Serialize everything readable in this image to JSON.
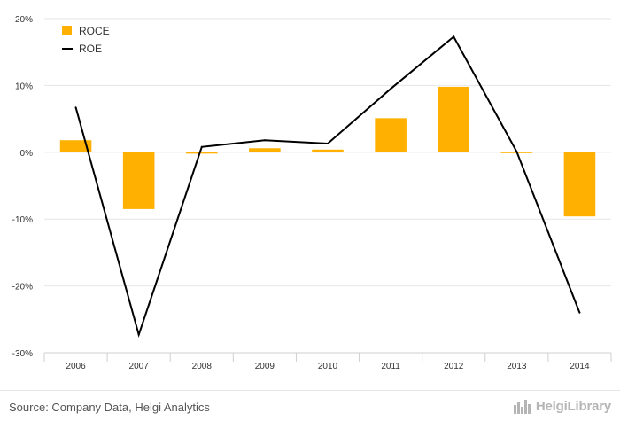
{
  "chart_data": {
    "type": "bar",
    "categories": [
      "2006",
      "2007",
      "2008",
      "2009",
      "2010",
      "2011",
      "2012",
      "2013",
      "2014"
    ],
    "series": [
      {
        "name": "ROCE",
        "type": "bar",
        "color": "#ffb000",
        "values": [
          1.8,
          -8.5,
          -0.2,
          0.6,
          0.4,
          5.1,
          9.8,
          0.0,
          -9.6
        ]
      },
      {
        "name": "ROE",
        "type": "line",
        "color": "#000000",
        "values": [
          6.7,
          -27.3,
          0.8,
          1.8,
          1.3,
          9.5,
          17.3,
          0.1,
          -24.0
        ]
      }
    ],
    "ylim": [
      -30,
      20
    ],
    "yticks": [
      "-30%",
      "-20%",
      "-10%",
      "0%",
      "10%",
      "20%"
    ],
    "grid": true,
    "legend_position": "top-left"
  },
  "footer": {
    "source": "Source: Company Data, Helgi Analytics",
    "brand": "HelgiLibrary",
    "brand_icon": "city-skyline-icon"
  }
}
